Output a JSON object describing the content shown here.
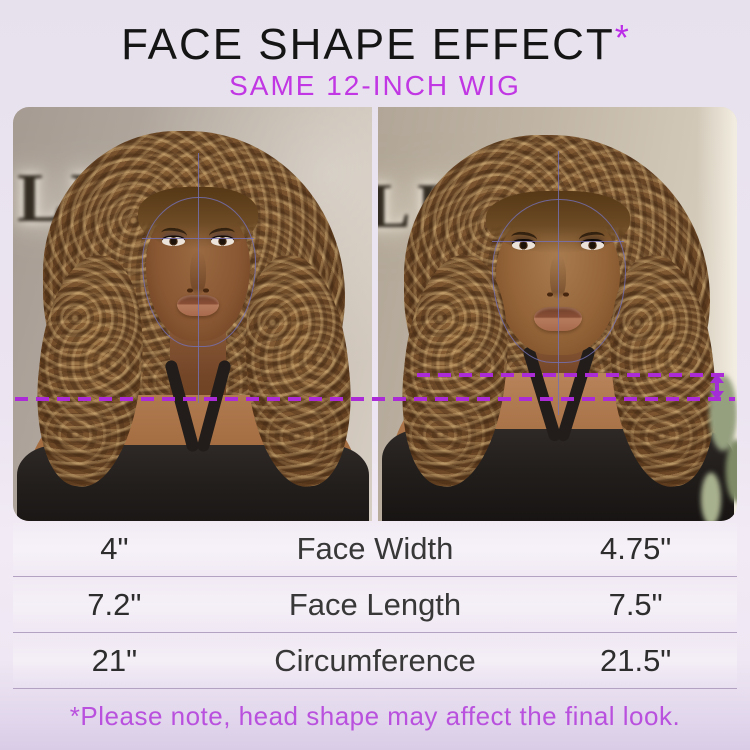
{
  "header": {
    "title": "FACE SHAPE EFFECT",
    "asterisk": "*",
    "subtitle": "SAME 12-INCH WIG"
  },
  "gallery": {
    "left": {
      "sign_text": "LUV"
    },
    "right": {
      "sign_text": "LUV"
    }
  },
  "measurements_table": {
    "rows": [
      {
        "left_value": "4\"",
        "label": "Face Width",
        "right_value": "4.75\""
      },
      {
        "left_value": "7.2\"",
        "label": "Face Length",
        "right_value": "7.5\""
      },
      {
        "left_value": "21\"",
        "label": "Circumference",
        "right_value": "21.5\""
      }
    ]
  },
  "footer": {
    "note": "*Please note, head shape may affect the final look."
  },
  "colors": {
    "title": "#151515",
    "accent_magenta": "#c137e3",
    "asterisk_magenta": "#bb2ce8",
    "dash_purple": "#ab2bd7",
    "note_purple": "#b951de"
  }
}
